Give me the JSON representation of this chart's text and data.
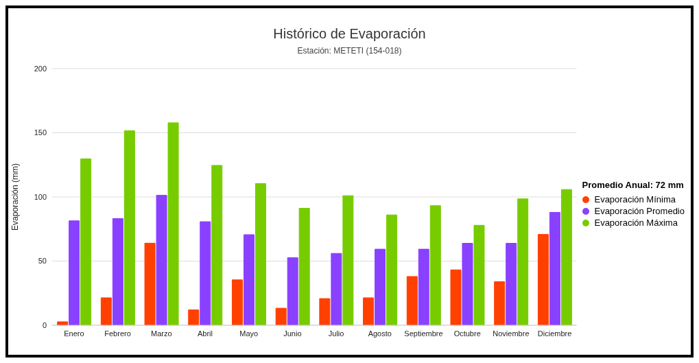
{
  "chart_data": {
    "type": "bar",
    "title": "Histórico de Evaporación",
    "subtitle": "Estación: METETI (154-018)",
    "ylabel": "Evaporación (mm)",
    "legend_title": "Promedio Anual: 72 mm",
    "categories": [
      "Enero",
      "Febrero",
      "Marzo",
      "Abril",
      "Mayo",
      "Junio",
      "Julio",
      "Agosto",
      "Septiembre",
      "Octubre",
      "Noviembre",
      "Diciembre"
    ],
    "series": [
      {
        "name": "Evaporación Mínima",
        "color": "#ff4000",
        "values": [
          2.7,
          21.4,
          64,
          12,
          35.4,
          13.3,
          20.8,
          21.4,
          38,
          43.2,
          34,
          70.8
        ]
      },
      {
        "name": "Evaporación Promedio",
        "color": "#8a40ff",
        "values": [
          81.4,
          83.2,
          101.3,
          80.7,
          70.6,
          52.7,
          56,
          59.3,
          59.3,
          63.9,
          63.9,
          88
        ]
      },
      {
        "name": "Evaporación Máxima",
        "color": "#77cc00",
        "values": [
          129.7,
          151.6,
          157.8,
          124.6,
          110.4,
          91.2,
          101,
          86,
          93.2,
          77.9,
          98.5,
          105.8
        ]
      }
    ],
    "ylim": [
      0,
      200
    ],
    "yticks": [
      0,
      50,
      100,
      150,
      200
    ],
    "grid": "y",
    "legend": "right"
  }
}
